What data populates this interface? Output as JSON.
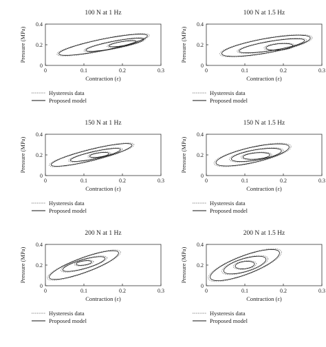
{
  "chart_data": [
    {
      "type": "line",
      "title": "100 N at 1 Hz",
      "xlabel": "Contraction (ε)",
      "ylabel": "Pressure (MPa)",
      "xlim": [
        0,
        0.3
      ],
      "ylim": [
        0,
        0.4
      ],
      "xticks": [
        "0",
        "0.1",
        "0.2",
        "0.3"
      ],
      "yticks": [
        "0",
        "0.2",
        "0.4"
      ],
      "legend": {
        "placement": "below",
        "entries": [
          "Hysteresis data",
          "Proposed model"
        ]
      },
      "series": [
        {
          "name": "Hysteresis data",
          "style": "dotted",
          "loops": [
            {
              "center": [
                0.15,
                0.2
              ],
              "semi_axes": [
                0.12,
                0.06
              ],
              "slope": 0.75
            },
            {
              "center": [
                0.18,
                0.2
              ],
              "semi_axes": [
                0.08,
                0.04
              ],
              "slope": 0.7
            },
            {
              "center": [
                0.2,
                0.21
              ],
              "semi_axes": [
                0.04,
                0.025
              ],
              "slope": 0.6
            }
          ]
        },
        {
          "name": "Proposed model",
          "style": "solid",
          "loops": [
            {
              "center": [
                0.15,
                0.2
              ],
              "semi_axes": [
                0.115,
                0.055
              ],
              "slope": 0.75
            },
            {
              "center": [
                0.18,
                0.2
              ],
              "semi_axes": [
                0.075,
                0.035
              ],
              "slope": 0.7
            },
            {
              "center": [
                0.2,
                0.21
              ],
              "semi_axes": [
                0.035,
                0.02
              ],
              "slope": 0.6
            }
          ]
        }
      ]
    },
    {
      "type": "line",
      "title": "100 N at 1.5 Hz",
      "xlabel": "Contraction (ε)",
      "ylabel": "Pressure (MPa)",
      "xlim": [
        0,
        0.3
      ],
      "ylim": [
        0,
        0.4
      ],
      "xticks": [
        "0",
        "0.1",
        "0.2",
        "0.3"
      ],
      "yticks": [
        "0",
        "0.2",
        "0.4"
      ],
      "legend": {
        "placement": "below",
        "entries": [
          "Hysteresis data",
          "Proposed model"
        ]
      },
      "series": [
        {
          "name": "Hysteresis data",
          "style": "dotted",
          "loops": [
            {
              "center": [
                0.155,
                0.19
              ],
              "semi_axes": [
                0.12,
                0.075
              ],
              "slope": 0.65
            },
            {
              "center": [
                0.17,
                0.19
              ],
              "semi_axes": [
                0.09,
                0.05
              ],
              "slope": 0.6
            },
            {
              "center": [
                0.19,
                0.18
              ],
              "semi_axes": [
                0.04,
                0.035
              ],
              "slope": 0.3
            }
          ]
        },
        {
          "name": "Proposed model",
          "style": "solid",
          "loops": [
            {
              "center": [
                0.155,
                0.19
              ],
              "semi_axes": [
                0.115,
                0.07
              ],
              "slope": 0.65
            },
            {
              "center": [
                0.17,
                0.19
              ],
              "semi_axes": [
                0.085,
                0.045
              ],
              "slope": 0.6
            },
            {
              "center": [
                0.19,
                0.18
              ],
              "semi_axes": [
                0.035,
                0.03
              ],
              "slope": 0.3
            }
          ]
        }
      ]
    },
    {
      "type": "line",
      "title": "150 N at 1 Hz",
      "xlabel": "Contraction (ε)",
      "ylabel": "Pressure (MPa)",
      "xlim": [
        0,
        0.3
      ],
      "ylim": [
        0,
        0.4
      ],
      "xticks": [
        "0",
        "0.1",
        "0.2",
        "0.3"
      ],
      "yticks": [
        "0",
        "0.2",
        "0.4"
      ],
      "legend": {
        "placement": "below",
        "entries": [
          "Hysteresis data",
          "Proposed model"
        ]
      },
      "series": [
        {
          "name": "Hysteresis data",
          "style": "dotted",
          "loops": [
            {
              "center": [
                0.12,
                0.2
              ],
              "semi_axes": [
                0.11,
                0.06
              ],
              "slope": 0.9
            },
            {
              "center": [
                0.13,
                0.2
              ],
              "semi_axes": [
                0.07,
                0.04
              ],
              "slope": 0.8
            },
            {
              "center": [
                0.14,
                0.2
              ],
              "semi_axes": [
                0.03,
                0.025
              ],
              "slope": 0.5
            }
          ]
        },
        {
          "name": "Proposed model",
          "style": "solid",
          "loops": [
            {
              "center": [
                0.12,
                0.2
              ],
              "semi_axes": [
                0.105,
                0.055
              ],
              "slope": 0.9
            },
            {
              "center": [
                0.13,
                0.2
              ],
              "semi_axes": [
                0.065,
                0.035
              ],
              "slope": 0.8
            },
            {
              "center": [
                0.14,
                0.2
              ],
              "semi_axes": [
                0.025,
                0.02
              ],
              "slope": 0.5
            }
          ]
        }
      ]
    },
    {
      "type": "line",
      "title": "150 N at 1.5 Hz",
      "xlabel": "Contraction (ε)",
      "ylabel": "Pressure (MPa)",
      "xlim": [
        0,
        0.3
      ],
      "ylim": [
        0,
        0.4
      ],
      "xticks": [
        "0",
        "0.1",
        "0.2",
        "0.3"
      ],
      "yticks": [
        "0",
        "0.2",
        "0.4"
      ],
      "legend": {
        "placement": "below",
        "entries": [
          "Hysteresis data",
          "Proposed model"
        ]
      },
      "series": [
        {
          "name": "Hysteresis data",
          "style": "dotted",
          "loops": [
            {
              "center": [
                0.12,
                0.2
              ],
              "semi_axes": [
                0.1,
                0.08
              ],
              "slope": 0.8
            },
            {
              "center": [
                0.13,
                0.2
              ],
              "semi_axes": [
                0.07,
                0.055
              ],
              "slope": 0.6
            },
            {
              "center": [
                0.13,
                0.19
              ],
              "semi_axes": [
                0.04,
                0.035
              ],
              "slope": 0.3
            }
          ]
        },
        {
          "name": "Proposed model",
          "style": "solid",
          "loops": [
            {
              "center": [
                0.12,
                0.2
              ],
              "semi_axes": [
                0.095,
                0.075
              ],
              "slope": 0.8
            },
            {
              "center": [
                0.13,
                0.2
              ],
              "semi_axes": [
                0.065,
                0.05
              ],
              "slope": 0.6
            },
            {
              "center": [
                0.13,
                0.19
              ],
              "semi_axes": [
                0.035,
                0.03
              ],
              "slope": 0.3
            }
          ]
        }
      ]
    },
    {
      "type": "line",
      "title": "200 N at 1 Hz",
      "xlabel": "Contraction (ε)",
      "ylabel": "Pressure (MPa)",
      "xlim": [
        0,
        0.3
      ],
      "ylim": [
        0,
        0.4
      ],
      "xticks": [
        "0",
        "0.1",
        "0.2",
        "0.3"
      ],
      "yticks": [
        "0",
        "0.2",
        "0.4"
      ],
      "legend": {
        "placement": "below",
        "entries": [
          "Hysteresis data",
          "Proposed model"
        ]
      },
      "series": [
        {
          "name": "Hysteresis data",
          "style": "dotted",
          "loops": [
            {
              "center": [
                0.1,
                0.2
              ],
              "semi_axes": [
                0.095,
                0.08
              ],
              "slope": 1.3
            },
            {
              "center": [
                0.1,
                0.21
              ],
              "semi_axes": [
                0.06,
                0.05
              ],
              "slope": 1.0
            },
            {
              "center": [
                0.1,
                0.22
              ],
              "semi_axes": [
                0.025,
                0.025
              ],
              "slope": 0.5
            }
          ]
        },
        {
          "name": "Proposed model",
          "style": "solid",
          "loops": [
            {
              "center": [
                0.1,
                0.2
              ],
              "semi_axes": [
                0.09,
                0.075
              ],
              "slope": 1.3
            },
            {
              "center": [
                0.1,
                0.21
              ],
              "semi_axes": [
                0.055,
                0.045
              ],
              "slope": 1.0
            },
            {
              "center": [
                0.1,
                0.22
              ],
              "semi_axes": [
                0.02,
                0.02
              ],
              "slope": 0.5
            }
          ]
        }
      ]
    },
    {
      "type": "line",
      "title": "200 N at 1.5 Hz",
      "xlabel": "Contraction (ε)",
      "ylabel": "Pressure (MPa)",
      "xlim": [
        0,
        0.3
      ],
      "ylim": [
        0,
        0.4
      ],
      "xticks": [
        "0",
        "0.1",
        "0.2",
        "0.3"
      ],
      "yticks": [
        "0",
        "0.2",
        "0.4"
      ],
      "legend": {
        "placement": "below",
        "entries": [
          "Hysteresis data",
          "Proposed model"
        ]
      },
      "series": [
        {
          "name": "Hysteresis data",
          "style": "dotted",
          "loops": [
            {
              "center": [
                0.1,
                0.2
              ],
              "semi_axes": [
                0.095,
                0.1
              ],
              "slope": 1.3
            },
            {
              "center": [
                0.1,
                0.2
              ],
              "semi_axes": [
                0.06,
                0.07
              ],
              "slope": 1.0
            },
            {
              "center": [
                0.1,
                0.2
              ],
              "semi_axes": [
                0.03,
                0.04
              ],
              "slope": 0.4
            }
          ]
        },
        {
          "name": "Proposed model",
          "style": "solid",
          "loops": [
            {
              "center": [
                0.1,
                0.2
              ],
              "semi_axes": [
                0.09,
                0.095
              ],
              "slope": 1.3
            },
            {
              "center": [
                0.1,
                0.2
              ],
              "semi_axes": [
                0.055,
                0.065
              ],
              "slope": 1.0
            },
            {
              "center": [
                0.1,
                0.2
              ],
              "semi_axes": [
                0.025,
                0.035
              ],
              "slope": 0.4
            }
          ]
        }
      ]
    }
  ]
}
